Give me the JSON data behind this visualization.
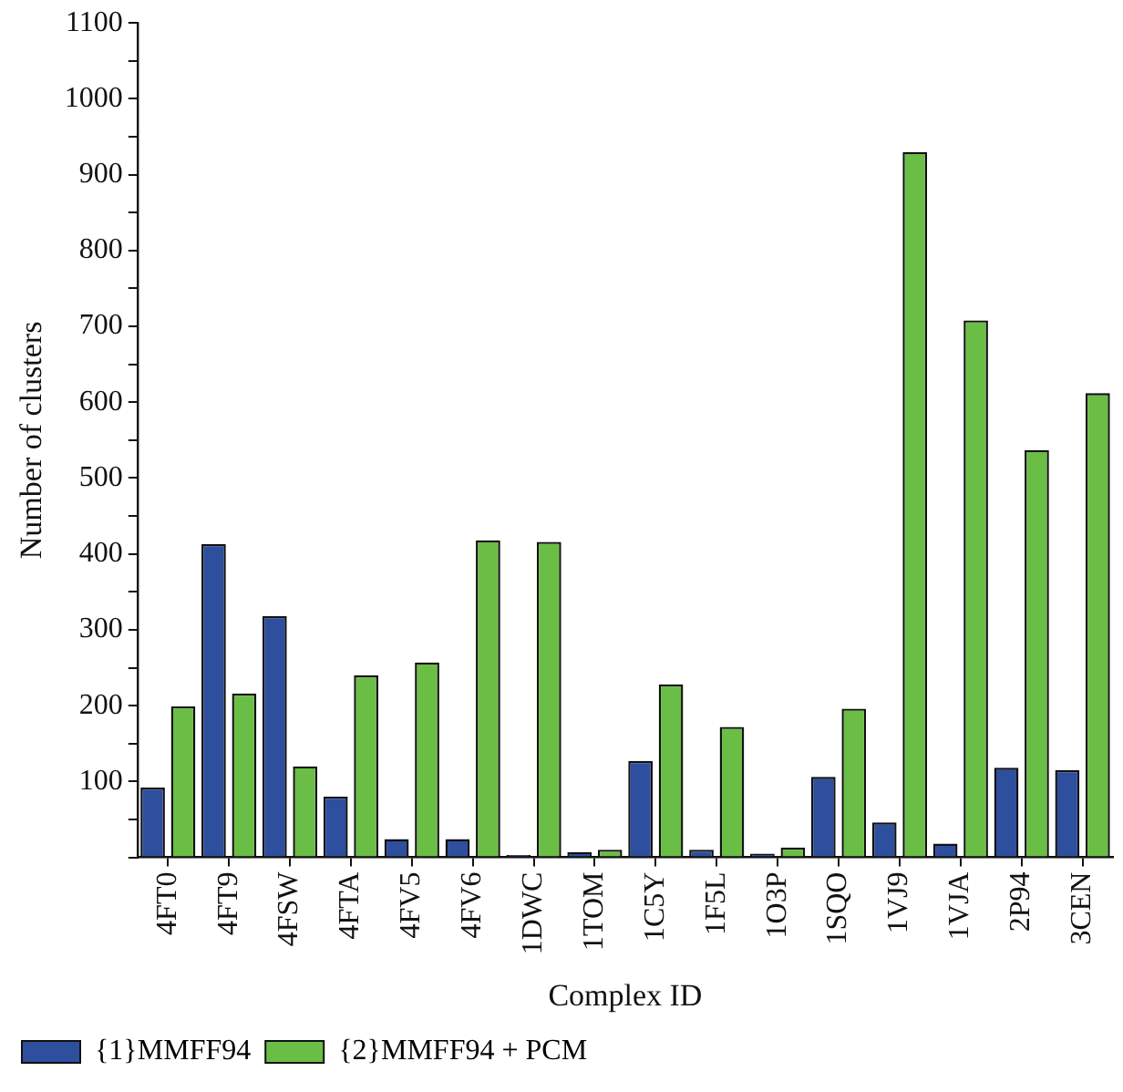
{
  "chart_data": {
    "type": "bar",
    "xlabel": "Complex ID",
    "ylabel": "Number of clusters",
    "categories": [
      "4FT0",
      "4FT9",
      "4FSW",
      "4FTA",
      "4FV5",
      "4FV6",
      "1DWC",
      "1TOM",
      "1C5Y",
      "1F5L",
      "1O3P",
      "1SQO",
      "1VJ9",
      "1VJA",
      "2P94",
      "3CEN"
    ],
    "series": [
      {
        "name": "{1}MMFF94",
        "color": "#2e4e9e",
        "values": [
          92,
          413,
          318,
          80,
          24,
          24,
          3,
          7,
          127,
          10,
          5,
          106,
          46,
          18,
          118,
          115
        ]
      },
      {
        "name": "{2}MMFF94 + PCM",
        "color": "#6abd45",
        "values": [
          199,
          216,
          120,
          240,
          257,
          418,
          416,
          10,
          228,
          172,
          13,
          196,
          930,
          708,
          537,
          612
        ]
      }
    ],
    "ylim": [
      0,
      1100
    ],
    "yticks": [
      {
        "value": 0,
        "label": null
      },
      {
        "value": 50,
        "label": null
      },
      100,
      {
        "value": 150,
        "label": null
      },
      200,
      {
        "value": 250,
        "label": null
      },
      300,
      {
        "value": 350,
        "label": null
      },
      400,
      {
        "value": 450,
        "label": null
      },
      500,
      {
        "value": 550,
        "label": null
      },
      600,
      {
        "value": 650,
        "label": null
      },
      700,
      {
        "value": 750,
        "label": null
      },
      800,
      {
        "value": 850,
        "label": null
      },
      900,
      {
        "value": 950,
        "label": null
      },
      1000,
      {
        "value": 1050,
        "label": null
      },
      1100
    ],
    "grid": false,
    "legend": "bottom left"
  }
}
